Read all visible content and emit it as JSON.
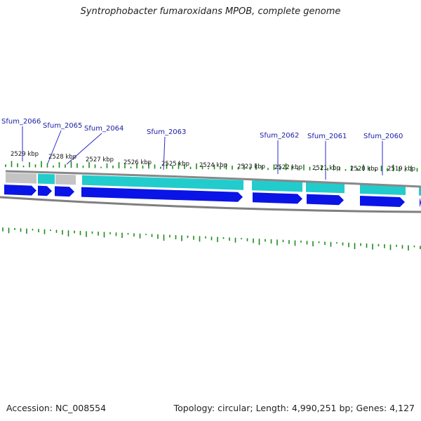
{
  "title": "Syntrophobacter fumaroxidans MPOB, complete genome",
  "accession_text": "Accession: NC_008554",
  "summary_text": "Topology: circular; Length: 4,990,251 bp; Genes: 4,127",
  "colors": {
    "gene_label": "#1a1aa6",
    "leader_line": "#2a2acc",
    "cds_arrow": "#0a14e6",
    "gene_teal": "#22cccc",
    "gene_gray": "#c4c4c4",
    "backbone": "#7f7f7f",
    "tick_green": "#1e8a1e"
  },
  "scale_labels": [
    "2529 kbp",
    "2528 kbp",
    "2527 kbp",
    "2526 kbp",
    "2525 kbp",
    "2524 kbp",
    "2523 kbp",
    "2522 kbp",
    "2521 kbp",
    "2520 kbp",
    "2519 kbp"
  ],
  "genes": [
    "Sfum_2066",
    "Sfum_2065",
    "Sfum_2064",
    "Sfum_2063",
    "Sfum_2062",
    "Sfum_2061",
    "Sfum_2060"
  ]
}
